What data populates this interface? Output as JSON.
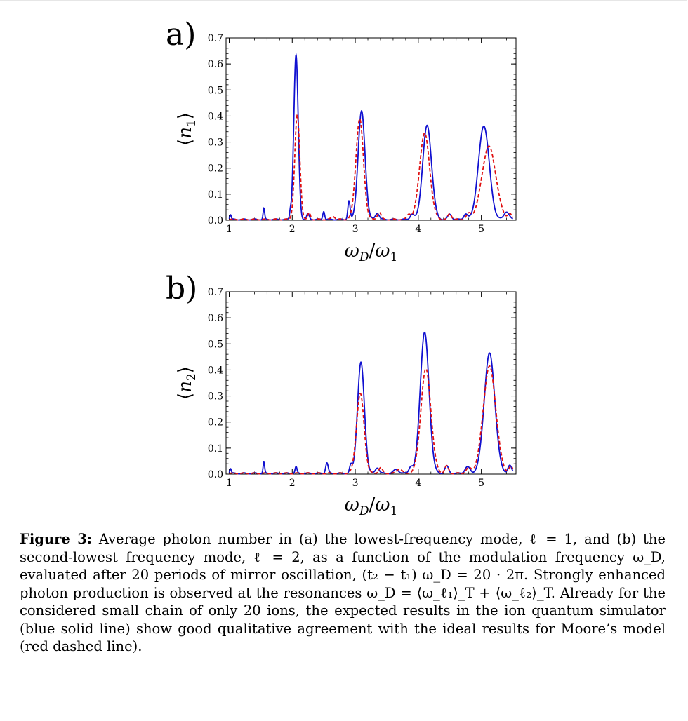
{
  "figure": {
    "caption_label": "Figure 3:",
    "caption_text": " Average photon number in (a) the lowest-frequency mode, ℓ = 1, and (b) the second-lowest frequency mode, ℓ = 2, as a function of the modulation frequency ω_D, evaluated after 20 periods of mirror oscillation, (t₂ − t₁) ω_D = 20 · 2π. Strongly enhanced photon production is observed at the resonances ω_D = ⟨ω_ℓ₁⟩_T + ⟨ω_ℓ₂⟩_T. Already for the considered small chain of only 20 ions, the expected results in the ion quantum simulator (blue solid line) show good qualitative agreement with the ideal results for Moore’s model (red dashed line)."
  },
  "colors": {
    "simulator": "#1010d0",
    "moore": "#e01010"
  },
  "chart_data": [
    {
      "type": "line",
      "panel": "a)",
      "xlabel": "ωD/ω1",
      "ylabel": "⟨n1⟩",
      "xlim": [
        0.95,
        5.55
      ],
      "ylim": [
        0.0,
        0.7
      ],
      "x_ticks": [
        "1",
        "2",
        "3",
        "4",
        "5"
      ],
      "y_ticks": [
        "0.0",
        "0.1",
        "0.2",
        "0.3",
        "0.4",
        "0.5",
        "0.6",
        "0.7"
      ],
      "series": [
        {
          "style": "solid",
          "color": "blue",
          "peaks": [
            [
              1.02,
              0.018,
              0.012
            ],
            [
              1.55,
              0.042,
              0.012
            ],
            [
              1.97,
              0.025,
              0.012
            ],
            [
              2.06,
              0.63,
              0.035
            ],
            [
              2.25,
              0.022,
              0.02
            ],
            [
              2.5,
              0.032,
              0.015
            ],
            [
              2.9,
              0.07,
              0.018
            ],
            [
              3.1,
              0.415,
              0.055
            ],
            [
              3.35,
              0.025,
              0.03
            ],
            [
              3.9,
              0.02,
              0.03
            ],
            [
              4.14,
              0.36,
              0.07
            ],
            [
              4.5,
              0.02,
              0.03
            ],
            [
              4.75,
              0.02,
              0.03
            ],
            [
              5.04,
              0.36,
              0.085
            ],
            [
              5.4,
              0.03,
              0.04
            ]
          ]
        },
        {
          "style": "dashed",
          "color": "red",
          "peaks": [
            [
              2.08,
              0.4,
              0.04
            ],
            [
              2.27,
              0.025,
              0.02
            ],
            [
              2.65,
              0.012,
              0.03
            ],
            [
              3.07,
              0.385,
              0.06
            ],
            [
              3.38,
              0.028,
              0.03
            ],
            [
              3.85,
              0.02,
              0.03
            ],
            [
              4.1,
              0.33,
              0.08
            ],
            [
              4.5,
              0.022,
              0.03
            ],
            [
              4.8,
              0.02,
              0.04
            ],
            [
              5.12,
              0.28,
              0.11
            ],
            [
              5.45,
              0.02,
              0.03
            ]
          ]
        }
      ]
    },
    {
      "type": "line",
      "panel": "b)",
      "xlabel": "ωD/ω1",
      "ylabel": "⟨n2⟩",
      "xlim": [
        0.95,
        5.55
      ],
      "ylim": [
        0.0,
        0.7
      ],
      "x_ticks": [
        "1",
        "2",
        "3",
        "4",
        "5"
      ],
      "y_ticks": [
        "0.0",
        "0.1",
        "0.2",
        "0.3",
        "0.4",
        "0.5",
        "0.6",
        "0.7"
      ],
      "series": [
        {
          "style": "solid",
          "color": "blue",
          "peaks": [
            [
              1.02,
              0.018,
              0.012
            ],
            [
              1.55,
              0.042,
              0.012
            ],
            [
              2.06,
              0.025,
              0.015
            ],
            [
              2.55,
              0.04,
              0.02
            ],
            [
              2.93,
              0.03,
              0.02
            ],
            [
              3.09,
              0.425,
              0.055
            ],
            [
              3.35,
              0.022,
              0.03
            ],
            [
              3.65,
              0.015,
              0.04
            ],
            [
              3.88,
              0.025,
              0.03
            ],
            [
              4.1,
              0.54,
              0.07
            ],
            [
              4.45,
              0.028,
              0.03
            ],
            [
              4.78,
              0.025,
              0.04
            ],
            [
              5.13,
              0.46,
              0.085
            ],
            [
              5.45,
              0.03,
              0.03
            ]
          ]
        },
        {
          "style": "dashed",
          "color": "red",
          "peaks": [
            [
              3.08,
              0.305,
              0.06
            ],
            [
              3.4,
              0.022,
              0.03
            ],
            [
              3.7,
              0.018,
              0.04
            ],
            [
              4.12,
              0.4,
              0.08
            ],
            [
              4.45,
              0.028,
              0.03
            ],
            [
              4.8,
              0.02,
              0.04
            ],
            [
              5.13,
              0.41,
              0.1
            ],
            [
              5.47,
              0.025,
              0.03
            ]
          ]
        }
      ]
    }
  ]
}
